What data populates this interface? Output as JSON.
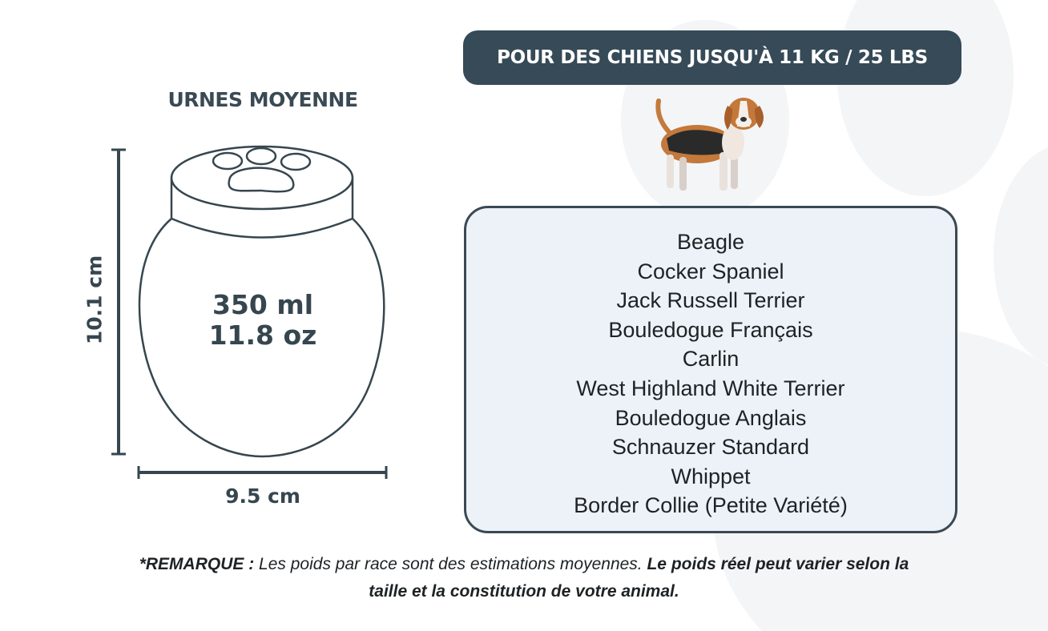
{
  "banner": {
    "text": "POUR DES CHIENS JUSQU'À 11 KG / 25 LBS"
  },
  "urn": {
    "title": "URNES MOYENNE",
    "volume_ml": "350 ml",
    "volume_oz": "11.8 oz",
    "height": "10.1 cm",
    "width": "9.5 cm"
  },
  "breeds": [
    "Beagle",
    "Cocker Spaniel",
    "Jack Russell Terrier",
    "Bouledogue Français",
    "Carlin",
    "West Highland White Terrier",
    "Bouledogue Anglais",
    "Schnauzer Standard",
    "Whippet",
    "Border Collie (Petite Variété)"
  ],
  "note": {
    "label": "*REMARQUE :",
    "text": " Les poids par race sont des estimations moyennes. ",
    "emphasis": "Le poids réel peut varier selon la taille et la constitution de votre animal."
  },
  "colors": {
    "dark": "#364a57",
    "box_bg": "#edf2f9",
    "paw_bg": "#f3f4f6"
  },
  "icons": {
    "dog": "beagle-illustration",
    "background": "paw-print"
  }
}
